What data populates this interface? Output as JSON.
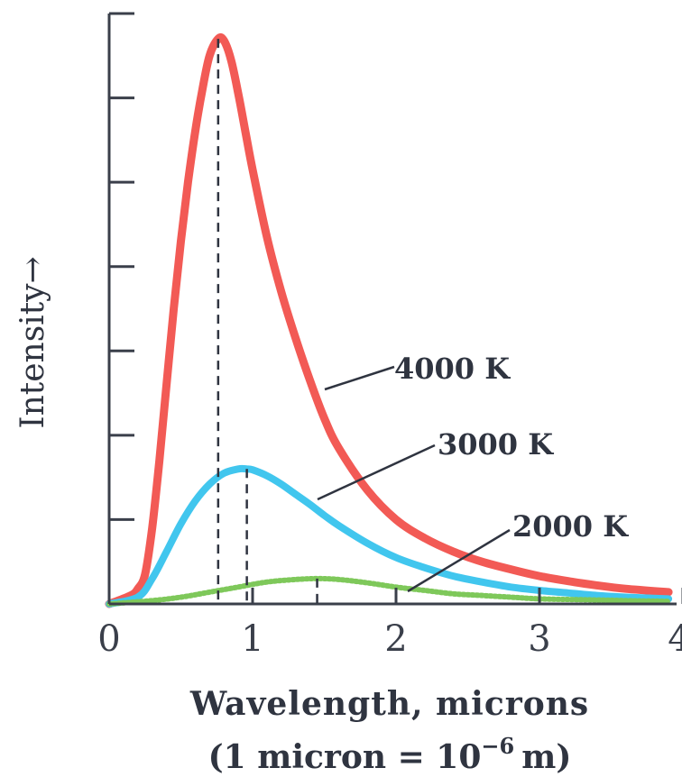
{
  "chart_data": {
    "type": "line",
    "title": "",
    "xlabel": "Wavelength, microns",
    "xlabel_note_prefix": "(1 micron = 10",
    "xlabel_note_exponent": "−6",
    "xlabel_note_suffix": "m)",
    "ylabel": "Intensity→",
    "xlim": [
      0,
      4
    ],
    "ylim": [
      0,
      7
    ],
    "x_ticks": [
      0,
      1,
      2,
      3,
      4
    ],
    "x_tick_labels": [
      "0",
      "1",
      "2",
      "3",
      "4"
    ],
    "y_ticks": [
      1,
      2,
      3,
      4,
      5,
      6,
      7
    ],
    "y_tick_labels_visible": false,
    "grid": false,
    "legend": "inline labels",
    "series": [
      {
        "name": "4000 K",
        "color": "#f25a55",
        "peak_x": 0.76,
        "peak_y": 6.7,
        "points": [
          [
            0.0,
            0.0
          ],
          [
            0.15,
            0.1
          ],
          [
            0.2,
            0.18
          ],
          [
            0.25,
            0.35
          ],
          [
            0.3,
            0.9
          ],
          [
            0.35,
            1.7
          ],
          [
            0.4,
            2.6
          ],
          [
            0.45,
            3.5
          ],
          [
            0.5,
            4.3
          ],
          [
            0.55,
            5.0
          ],
          [
            0.6,
            5.6
          ],
          [
            0.65,
            6.1
          ],
          [
            0.7,
            6.5
          ],
          [
            0.76,
            6.7
          ],
          [
            0.8,
            6.68
          ],
          [
            0.85,
            6.45
          ],
          [
            0.9,
            6.05
          ],
          [
            0.95,
            5.6
          ],
          [
            1.0,
            5.15
          ],
          [
            1.1,
            4.35
          ],
          [
            1.2,
            3.7
          ],
          [
            1.3,
            3.15
          ],
          [
            1.4,
            2.65
          ],
          [
            1.5,
            2.2
          ],
          [
            1.6,
            1.85
          ],
          [
            1.8,
            1.35
          ],
          [
            2.0,
            1.0
          ],
          [
            2.2,
            0.78
          ],
          [
            2.4,
            0.62
          ],
          [
            2.6,
            0.5
          ],
          [
            2.8,
            0.41
          ],
          [
            3.0,
            0.33
          ],
          [
            3.2,
            0.27
          ],
          [
            3.4,
            0.22
          ],
          [
            3.6,
            0.18
          ],
          [
            3.9,
            0.14
          ]
        ]
      },
      {
        "name": "3000 K",
        "color": "#41c6ee",
        "peak_x": 0.96,
        "peak_y": 1.6,
        "points": [
          [
            0.0,
            0.0
          ],
          [
            0.2,
            0.08
          ],
          [
            0.3,
            0.3
          ],
          [
            0.4,
            0.62
          ],
          [
            0.5,
            0.95
          ],
          [
            0.6,
            1.22
          ],
          [
            0.7,
            1.42
          ],
          [
            0.8,
            1.55
          ],
          [
            0.9,
            1.6
          ],
          [
            0.96,
            1.6
          ],
          [
            1.0,
            1.59
          ],
          [
            1.1,
            1.52
          ],
          [
            1.2,
            1.42
          ],
          [
            1.3,
            1.3
          ],
          [
            1.4,
            1.18
          ],
          [
            1.5,
            1.05
          ],
          [
            1.6,
            0.93
          ],
          [
            1.8,
            0.72
          ],
          [
            2.0,
            0.55
          ],
          [
            2.2,
            0.43
          ],
          [
            2.4,
            0.33
          ],
          [
            2.6,
            0.26
          ],
          [
            2.8,
            0.2
          ],
          [
            3.0,
            0.16
          ],
          [
            3.2,
            0.13
          ],
          [
            3.4,
            0.1
          ],
          [
            3.6,
            0.08
          ],
          [
            3.9,
            0.06
          ]
        ]
      },
      {
        "name": "2000 K",
        "color": "#7ec85a",
        "peak_x": 1.45,
        "peak_y": 0.3,
        "points": [
          [
            0.0,
            0.0
          ],
          [
            0.3,
            0.04
          ],
          [
            0.5,
            0.08
          ],
          [
            0.7,
            0.14
          ],
          [
            0.9,
            0.2
          ],
          [
            1.1,
            0.26
          ],
          [
            1.3,
            0.29
          ],
          [
            1.45,
            0.3
          ],
          [
            1.6,
            0.29
          ],
          [
            1.8,
            0.25
          ],
          [
            2.0,
            0.2
          ],
          [
            2.2,
            0.16
          ],
          [
            2.4,
            0.12
          ],
          [
            2.6,
            0.1
          ],
          [
            2.8,
            0.08
          ],
          [
            3.0,
            0.06
          ],
          [
            3.3,
            0.05
          ],
          [
            3.6,
            0.04
          ],
          [
            3.9,
            0.03
          ]
        ]
      }
    ],
    "annotations": [
      {
        "type": "dashed-vertical",
        "series": "4000 K",
        "x": 0.76,
        "y": 6.7
      },
      {
        "type": "dashed-vertical",
        "series": "3000 K",
        "x": 0.96,
        "y": 1.6
      },
      {
        "type": "dashed-vertical",
        "series": "2000 K",
        "x": 1.45,
        "y": 0.3
      }
    ]
  }
}
